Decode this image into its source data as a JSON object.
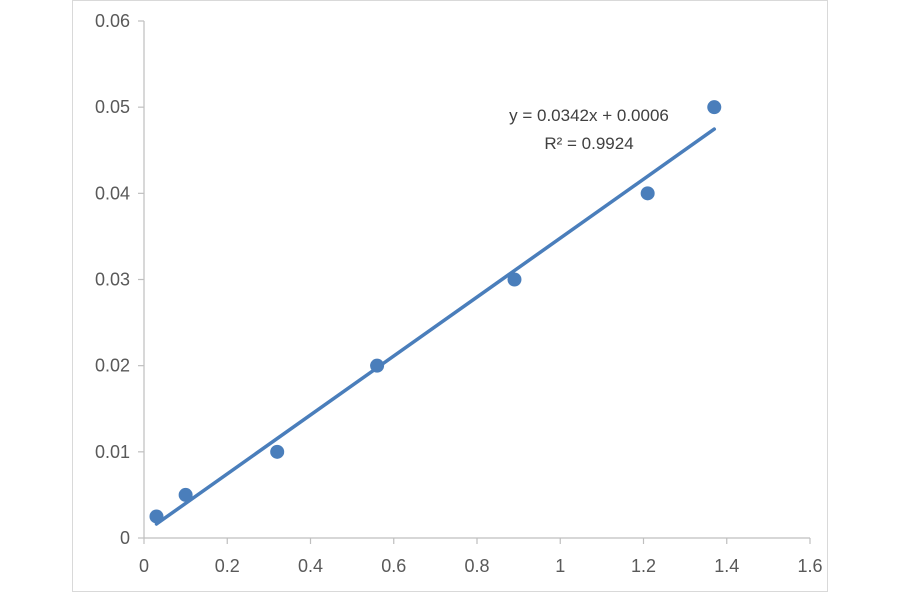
{
  "chart_data": {
    "type": "scatter",
    "title": "",
    "xlabel": "",
    "ylabel": "",
    "xlim": [
      0,
      1.6
    ],
    "ylim": [
      0,
      0.06
    ],
    "x_ticks": [
      "0",
      "0.2",
      "0.4",
      "0.6",
      "0.8",
      "1",
      "1.2",
      "1.4",
      "1.6"
    ],
    "y_ticks": [
      "0",
      "0.01",
      "0.02",
      "0.03",
      "0.04",
      "0.05",
      "0.06"
    ],
    "grid": false,
    "legend": "none",
    "series": [
      {
        "color": "#4a7ebb",
        "points": [
          {
            "x": 0.03,
            "y": 0.0025
          },
          {
            "x": 0.1,
            "y": 0.005
          },
          {
            "x": 0.32,
            "y": 0.01
          },
          {
            "x": 0.56,
            "y": 0.02
          },
          {
            "x": 0.89,
            "y": 0.03
          },
          {
            "x": 1.21,
            "y": 0.04
          },
          {
            "x": 1.37,
            "y": 0.05
          }
        ]
      }
    ],
    "trendline": {
      "type": "linear",
      "slope": 0.0342,
      "intercept": 0.0006,
      "x_start": 0.03,
      "x_end": 1.37,
      "color": "#4a7ebb",
      "equation_label": "y = 0.0342x + 0.0006",
      "r2_label": "R² = 0.9924"
    }
  }
}
